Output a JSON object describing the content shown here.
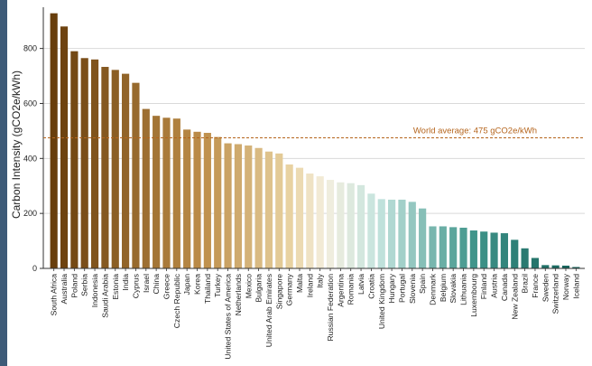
{
  "chart_data": {
    "type": "bar",
    "ylabel": "Carbon Intensity (gCO2e/kWh)",
    "xlabel": "",
    "ylim": [
      0,
      950
    ],
    "yticks": [
      0,
      200,
      400,
      600,
      800
    ],
    "grid": "horizontal",
    "categories": [
      "South Africa",
      "Australia",
      "Poland",
      "Serbia",
      "Indonesia",
      "Saudi Arabia",
      "Estonia",
      "India",
      "Cyprus",
      "Israel",
      "China",
      "Greece",
      "Czech Republic",
      "Japan",
      "Korea",
      "Thailand",
      "Turkey",
      "United States of America",
      "Netherlands",
      "Mexico",
      "Bulgaria",
      "United Arab Emirates",
      "Singapore",
      "Germany",
      "Malta",
      "Ireland",
      "Italy",
      "Russian Federation",
      "Argentina",
      "Romania",
      "Latvia",
      "Croatia",
      "United Kingdom",
      "Hungary",
      "Portugal",
      "Slovenia",
      "Spain",
      "Denmark",
      "Belgium",
      "Slovakia",
      "Lithuania",
      "Luxembourg",
      "Finland",
      "Austria",
      "Canada",
      "New Zealand",
      "Brazil",
      "France",
      "Sweden",
      "Switzerland",
      "Norway",
      "Iceland"
    ],
    "values": [
      928,
      880,
      790,
      765,
      760,
      733,
      722,
      708,
      675,
      580,
      555,
      548,
      545,
      505,
      497,
      493,
      478,
      455,
      452,
      447,
      438,
      425,
      418,
      378,
      366,
      345,
      335,
      322,
      313,
      310,
      303,
      272,
      252,
      250,
      250,
      242,
      218,
      153,
      153,
      150,
      148,
      138,
      134,
      130,
      128,
      104,
      73,
      38,
      12,
      11,
      10,
      5
    ],
    "annotation": {
      "label": "World average: 475 gCO2e/kWh",
      "value": 475,
      "color": "#b5651d"
    },
    "color_scale": "brown (high) to white to teal (low)"
  }
}
